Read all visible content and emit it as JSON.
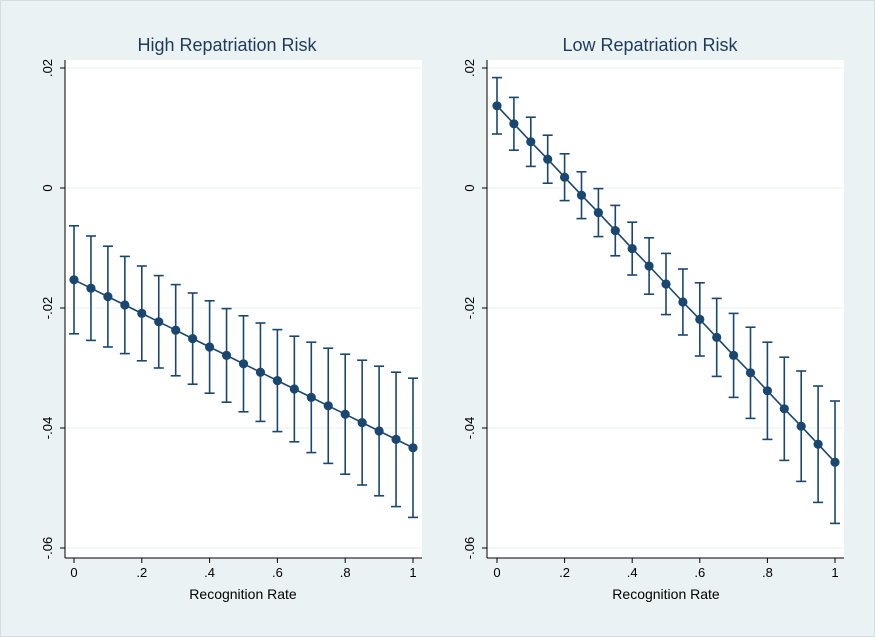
{
  "chart_data": [
    {
      "type": "scatter",
      "title": "High Repatriation Risk",
      "xlabel": "Recognition Rate",
      "ylabel": "",
      "xlim": [
        0,
        1
      ],
      "ylim": [
        -0.06,
        0.02
      ],
      "xticks": [
        "0",
        ".2",
        ".4",
        ".6",
        ".8",
        "1"
      ],
      "yticks": [
        "-.06",
        "-.04",
        "-.02",
        "0",
        ".02"
      ],
      "grid": "horizontal",
      "legend": "none",
      "colors": {
        "series": "#1a476f",
        "grid": "#eaf2f3",
        "background": "#eaf2f3",
        "plot_area": "#ffffff"
      },
      "series": [
        {
          "x": [
            0,
            0.05,
            0.1,
            0.15,
            0.2,
            0.25,
            0.3,
            0.35,
            0.4,
            0.45,
            0.5,
            0.55,
            0.6,
            0.65,
            0.7,
            0.75,
            0.8,
            0.85,
            0.9,
            0.95,
            1
          ],
          "y": [
            -0.0153,
            -0.0167,
            -0.0181,
            -0.0195,
            -0.0209,
            -0.0223,
            -0.0237,
            -0.0251,
            -0.0265,
            -0.0279,
            -0.0293,
            -0.0307,
            -0.0321,
            -0.0335,
            -0.0349,
            -0.0363,
            -0.0377,
            -0.0391,
            -0.0405,
            -0.0419,
            -0.0433
          ],
          "ci_low": [
            -0.0243,
            -0.0254,
            -0.0265,
            -0.0276,
            -0.0288,
            -0.03,
            -0.0313,
            -0.0327,
            -0.0342,
            -0.0357,
            -0.0373,
            -0.0389,
            -0.0406,
            -0.0423,
            -0.0441,
            -0.0459,
            -0.0477,
            -0.0495,
            -0.0513,
            -0.0531,
            -0.0549
          ],
          "ci_high": [
            -0.0063,
            -0.008,
            -0.0097,
            -0.0114,
            -0.013,
            -0.0146,
            -0.0161,
            -0.0175,
            -0.0188,
            -0.0201,
            -0.0213,
            -0.0225,
            -0.0236,
            -0.0247,
            -0.0257,
            -0.0267,
            -0.0277,
            -0.0287,
            -0.0297,
            -0.0307,
            -0.0317
          ]
        }
      ]
    },
    {
      "type": "scatter",
      "title": "Low Repatriation Risk",
      "xlabel": "Recognition Rate",
      "ylabel": "",
      "xlim": [
        0,
        1
      ],
      "ylim": [
        -0.06,
        0.02
      ],
      "xticks": [
        "0",
        ".2",
        ".4",
        ".6",
        ".8",
        "1"
      ],
      "yticks": [
        "-.06",
        "-.04",
        "-.02",
        "0",
        ".02"
      ],
      "grid": "horizontal",
      "legend": "none",
      "colors": {
        "series": "#1a476f",
        "grid": "#eaf2f3",
        "background": "#eaf2f3",
        "plot_area": "#ffffff"
      },
      "series": [
        {
          "x": [
            0,
            0.05,
            0.1,
            0.15,
            0.2,
            0.25,
            0.3,
            0.35,
            0.4,
            0.45,
            0.5,
            0.55,
            0.6,
            0.65,
            0.7,
            0.75,
            0.8,
            0.85,
            0.9,
            0.95,
            1
          ],
          "y": [
            0.0137,
            0.0107,
            0.0077,
            0.0048,
            0.0018,
            -0.0012,
            -0.0041,
            -0.0071,
            -0.0101,
            -0.013,
            -0.016,
            -0.019,
            -0.0219,
            -0.0249,
            -0.0279,
            -0.0308,
            -0.0338,
            -0.0368,
            -0.0397,
            -0.0427,
            -0.0457
          ],
          "ci_low": [
            0.009,
            0.0063,
            0.0036,
            0.0008,
            -0.0021,
            -0.0051,
            -0.0081,
            -0.0113,
            -0.0145,
            -0.0177,
            -0.0211,
            -0.0245,
            -0.028,
            -0.0314,
            -0.0349,
            -0.0384,
            -0.0419,
            -0.0454,
            -0.0489,
            -0.0524,
            -0.0559
          ],
          "ci_high": [
            0.0184,
            0.0151,
            0.0118,
            0.0088,
            0.0057,
            0.0027,
            -0.0001,
            -0.0029,
            -0.0057,
            -0.0083,
            -0.0109,
            -0.0135,
            -0.0158,
            -0.0184,
            -0.0209,
            -0.0232,
            -0.0257,
            -0.0282,
            -0.0305,
            -0.033,
            -0.0355
          ]
        }
      ]
    }
  ]
}
